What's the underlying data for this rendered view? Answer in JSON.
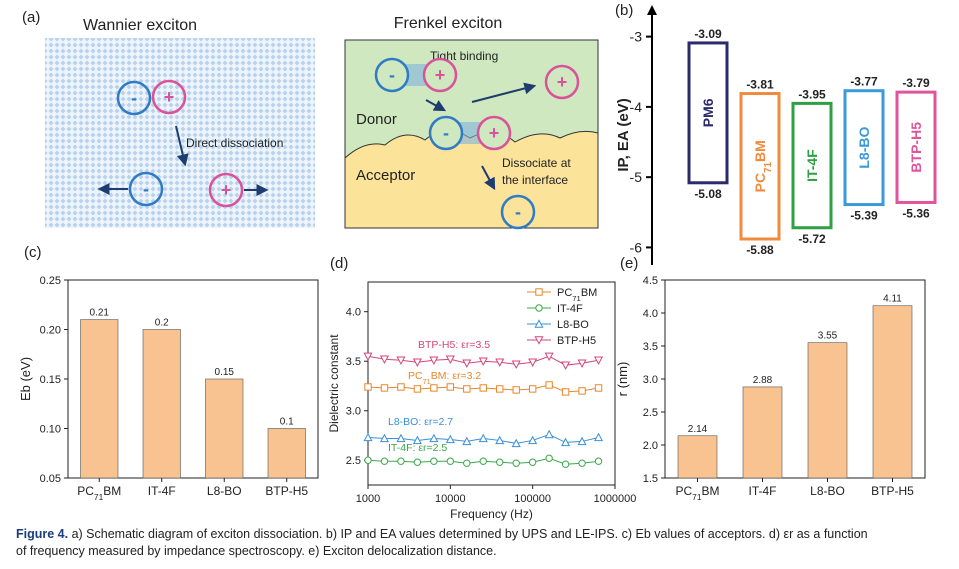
{
  "schematic": {
    "panel_label": "(a)",
    "wannier": {
      "title": "Wannier exciton",
      "annotation": "Direct dissociation"
    },
    "frenkel": {
      "title": "Frenkel exciton",
      "tight_binding": "Tight binding",
      "donor": "Donor",
      "acceptor": "Acceptor",
      "interface": [
        "Dissociate at",
        "the interface"
      ]
    },
    "charges": [
      "-",
      "+"
    ]
  },
  "chart_data": [
    {
      "type": "energy_levels",
      "panel_label": "(b)",
      "y_label": "IP, EA (eV)",
      "ylim": [
        -6.25,
        -2.55
      ],
      "yticks": [
        -3,
        -4,
        -5,
        -6
      ],
      "categories": [
        "PM6",
        "PC71BM",
        "IT-4F",
        "L8-BO",
        "BTP-H5"
      ],
      "top": [
        -3.09,
        -3.81,
        -3.95,
        -3.77,
        -3.79
      ],
      "bottom": [
        -5.08,
        -5.88,
        -5.72,
        -5.39,
        -5.36
      ],
      "colors": [
        "#2b2a6b",
        "#f08a3c",
        "#2ea043",
        "#3a9ad9",
        "#e0559a"
      ]
    },
    {
      "type": "bar",
      "panel_label": "(c)",
      "y_label": "Eb (eV)",
      "categories": [
        "PC71BM",
        "IT-4F",
        "L8-BO",
        "BTP-H5"
      ],
      "values": [
        0.21,
        0.2,
        0.15,
        0.1
      ],
      "color": "#f8c291",
      "ylim": [
        0.05,
        0.25
      ],
      "yticks": [
        0.05,
        {
          "value": 0.1,
          "label": "0.10"
        },
        0.15,
        {
          "value": 0.2,
          "label": "0.20"
        },
        0.25
      ]
    },
    {
      "type": "line",
      "panel_label": "(d)",
      "x_label": "Frequency (Hz)",
      "y_label": "Dielectric constant",
      "log_x": true,
      "legend": "upper right",
      "x": [
        1000,
        1585,
        2512,
        3981,
        6310,
        10000,
        15849,
        25119,
        39811,
        63096,
        100000,
        158489,
        251189,
        398107,
        630957
      ],
      "xlim": [
        1000,
        1000000
      ],
      "xticks": [
        1000,
        10000,
        100000,
        1000000
      ],
      "ylim": [
        2.25,
        4.3
      ],
      "yticks": [
        2.5,
        {
          "value": 3,
          "label": "3.0"
        },
        3.5,
        {
          "value": 4,
          "label": "4.0"
        }
      ],
      "series": [
        {
          "name": "PC71BM",
          "color": "#e8872a",
          "marker": "square",
          "values": [
            3.24,
            3.23,
            3.24,
            3.22,
            3.23,
            3.24,
            3.22,
            3.23,
            3.22,
            3.21,
            3.22,
            3.26,
            3.19,
            3.2,
            3.23
          ]
        },
        {
          "name": "IT-4F",
          "color": "#3aa84a",
          "marker": "circle",
          "values": [
            2.5,
            2.49,
            2.49,
            2.48,
            2.49,
            2.49,
            2.47,
            2.49,
            2.48,
            2.47,
            2.48,
            2.52,
            2.46,
            2.47,
            2.49
          ]
        },
        {
          "name": "L8-BO",
          "color": "#3a8fd8",
          "marker": "triangle-up",
          "values": [
            2.73,
            2.72,
            2.72,
            2.7,
            2.72,
            2.71,
            2.69,
            2.72,
            2.7,
            2.67,
            2.7,
            2.76,
            2.68,
            2.69,
            2.73
          ]
        },
        {
          "name": "BTP-H5",
          "color": "#d4457a",
          "marker": "triangle-down",
          "values": [
            3.55,
            3.52,
            3.51,
            3.49,
            3.51,
            3.52,
            3.48,
            3.5,
            3.49,
            3.47,
            3.49,
            3.55,
            3.46,
            3.48,
            3.51
          ]
        }
      ],
      "annotations": [
        {
          "text": "BTP-H5: εr=3.5",
          "color": "#d4457a"
        },
        {
          "text": "PC71BM: εr=3.2",
          "color": "#e8872a"
        },
        {
          "text": "L8-BO: εr=2.7",
          "color": "#3a8fd8"
        },
        {
          "text": "IT-4F: εr=2.5",
          "color": "#3aa84a"
        }
      ]
    },
    {
      "type": "bar",
      "panel_label": "(e)",
      "y_label": "r (nm)",
      "categories": [
        "PC71BM",
        "IT-4F",
        "L8-BO",
        "BTP-H5"
      ],
      "values": [
        2.14,
        2.88,
        3.55,
        4.11
      ],
      "color": "#f8c291",
      "ylim": [
        1.5,
        4.5
      ],
      "yticks": [
        1.5,
        {
          "value": 2,
          "label": "2.0"
        },
        2.5,
        {
          "value": 3,
          "label": "3.0"
        },
        3.5,
        {
          "value": 4,
          "label": "4.0"
        },
        4.5
      ]
    }
  ],
  "caption": {
    "label": "Figure 4.",
    "lines": [
      "a) Schematic diagram of exciton dissociation. b) IP and EA values determined by UPS and LE-IPS. c) Eb values of acceptors. d) εr as a function",
      "of frequency measured by impedance spectroscopy. e) Exciton delocalization distance."
    ]
  }
}
